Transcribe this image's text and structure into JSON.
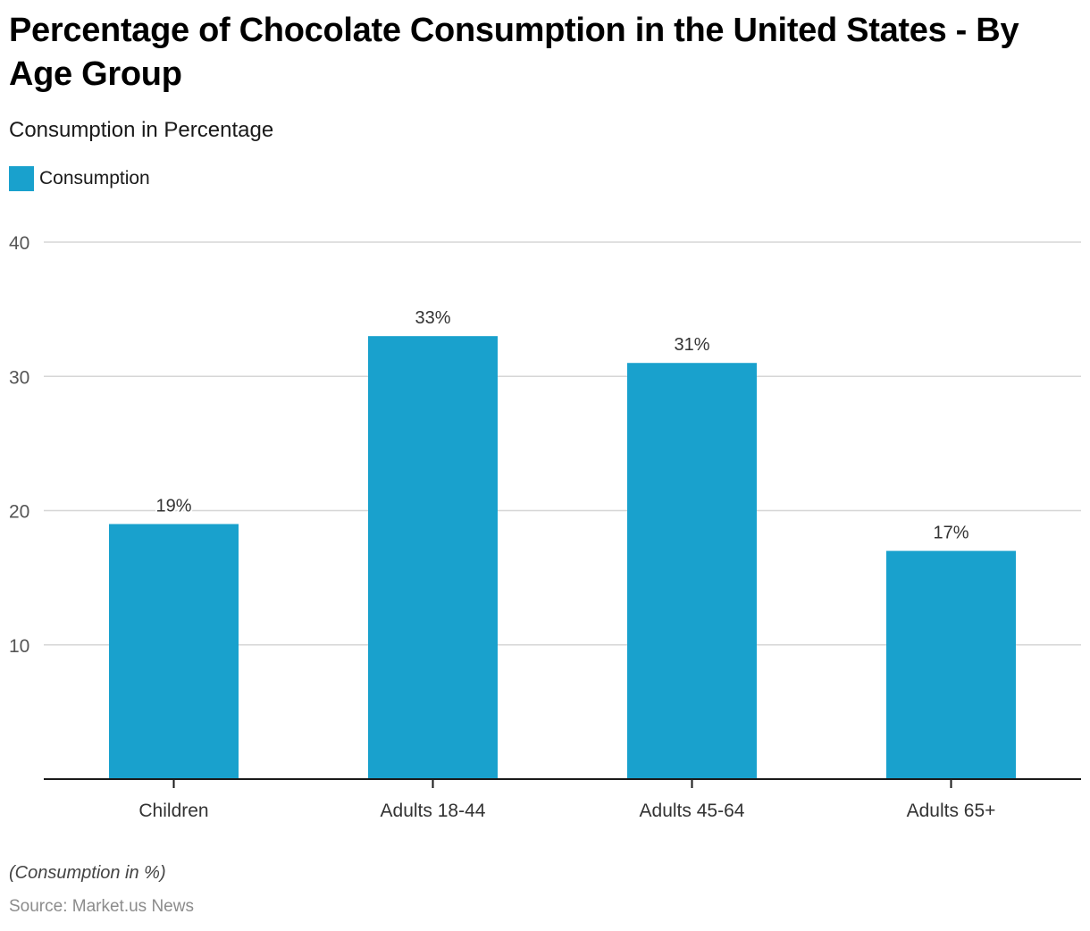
{
  "chart_data": {
    "type": "bar",
    "title": "Percentage of Chocolate Consumption in the United States - By Age Group",
    "subtitle": "Consumption in Percentage",
    "xlabel": "",
    "ylabel": "",
    "categories": [
      "Children",
      "Adults 18-44",
      "Adults 45-64",
      "Adults 65+"
    ],
    "series": [
      {
        "name": "Consumption",
        "values": [
          19,
          33,
          31,
          17
        ],
        "color": "#19a1cd"
      }
    ],
    "data_labels": [
      "19%",
      "33%",
      "31%",
      "17%"
    ],
    "ylim": [
      0,
      40
    ],
    "yticks": [
      10,
      20,
      30,
      40
    ],
    "ytick_labels": [
      "10",
      "20",
      "30",
      "40"
    ],
    "grid": true,
    "legend": {
      "entries": [
        "Consumption"
      ],
      "position": "top-left"
    }
  },
  "footer": {
    "note": "(Consumption in %)",
    "source": "Source: Market.us News"
  }
}
